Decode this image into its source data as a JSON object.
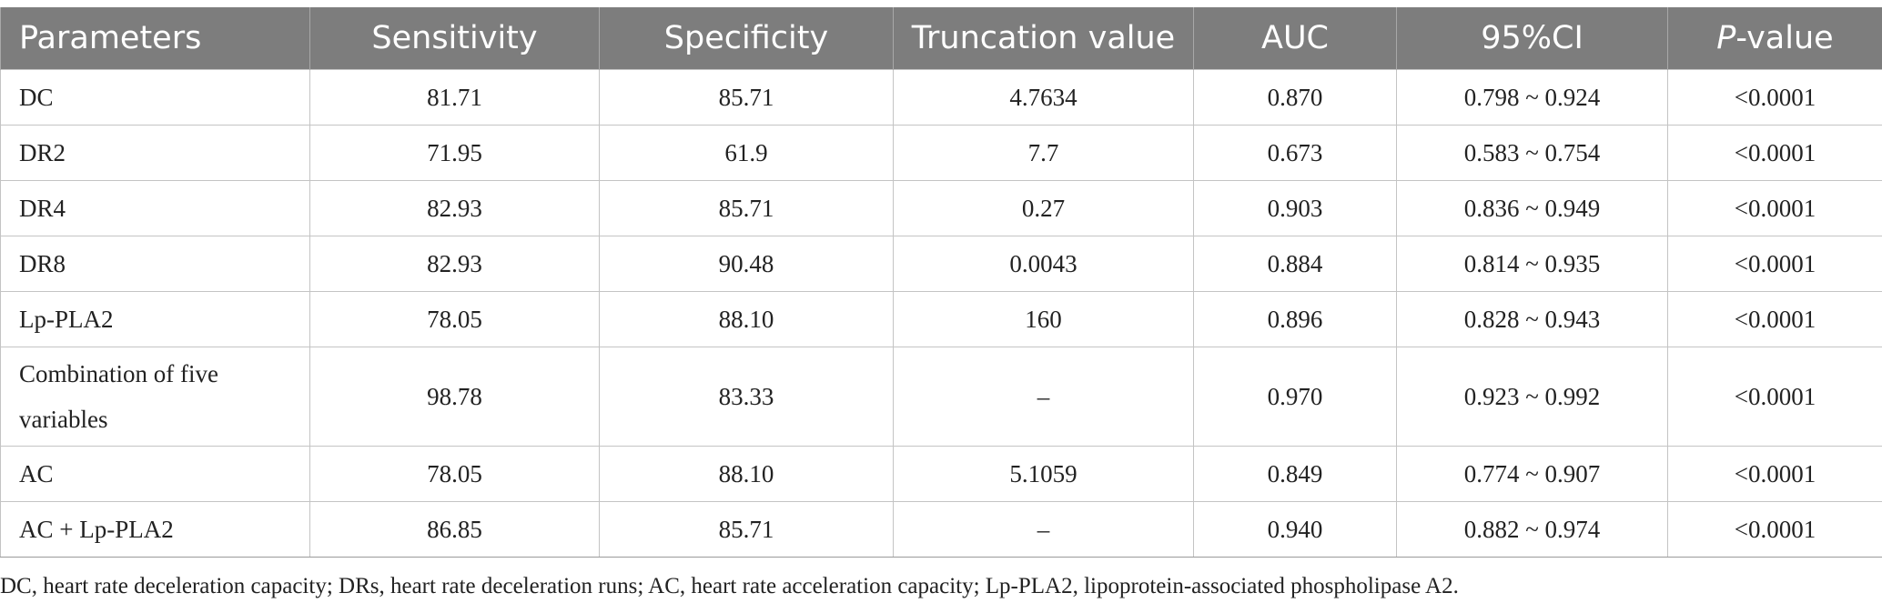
{
  "table": {
    "headers": {
      "parameters": "Parameters",
      "sensitivity": "Sensitivity",
      "specificity": "Specificity",
      "truncation": "Truncation value",
      "auc": "AUC",
      "ci": "95%CI",
      "p_italic": "P",
      "p_rest": "-value"
    },
    "rows": [
      {
        "parameter": "DC",
        "sensitivity": "81.71",
        "specificity": "85.71",
        "truncation": "4.7634",
        "auc": "0.870",
        "ci": "0.798 ~ 0.924",
        "p": "<0.0001"
      },
      {
        "parameter": "DR2",
        "sensitivity": "71.95",
        "specificity": "61.9",
        "truncation": "7.7",
        "auc": "0.673",
        "ci": "0.583 ~ 0.754",
        "p": "<0.0001"
      },
      {
        "parameter": "DR4",
        "sensitivity": "82.93",
        "specificity": "85.71",
        "truncation": "0.27",
        "auc": "0.903",
        "ci": "0.836 ~ 0.949",
        "p": "<0.0001"
      },
      {
        "parameter": "DR8",
        "sensitivity": "82.93",
        "specificity": "90.48",
        "truncation": "0.0043",
        "auc": "0.884",
        "ci": "0.814 ~ 0.935",
        "p": "<0.0001"
      },
      {
        "parameter": "Lp-PLA2",
        "sensitivity": "78.05",
        "specificity": "88.10",
        "truncation": "160",
        "auc": "0.896",
        "ci": "0.828 ~ 0.943",
        "p": "<0.0001"
      },
      {
        "parameter": "Combination of five variables",
        "sensitivity": "98.78",
        "specificity": "83.33",
        "truncation": "–",
        "auc": "0.970",
        "ci": "0.923 ~ 0.992",
        "p": "<0.0001"
      },
      {
        "parameter": "AC",
        "sensitivity": "78.05",
        "specificity": "88.10",
        "truncation": "5.1059",
        "auc": "0.849",
        "ci": "0.774 ~ 0.907",
        "p": "<0.0001"
      },
      {
        "parameter": "AC + Lp-PLA2",
        "sensitivity": "86.85",
        "specificity": "85.71",
        "truncation": "–",
        "auc": "0.940",
        "ci": "0.882 ~ 0.974",
        "p": "<0.0001"
      }
    ]
  },
  "footnote": "DC, heart rate deceleration capacity; DRs, heart rate deceleration runs; AC, heart rate acceleration capacity; Lp-PLA2, lipoprotein-associated phospholipase A2."
}
